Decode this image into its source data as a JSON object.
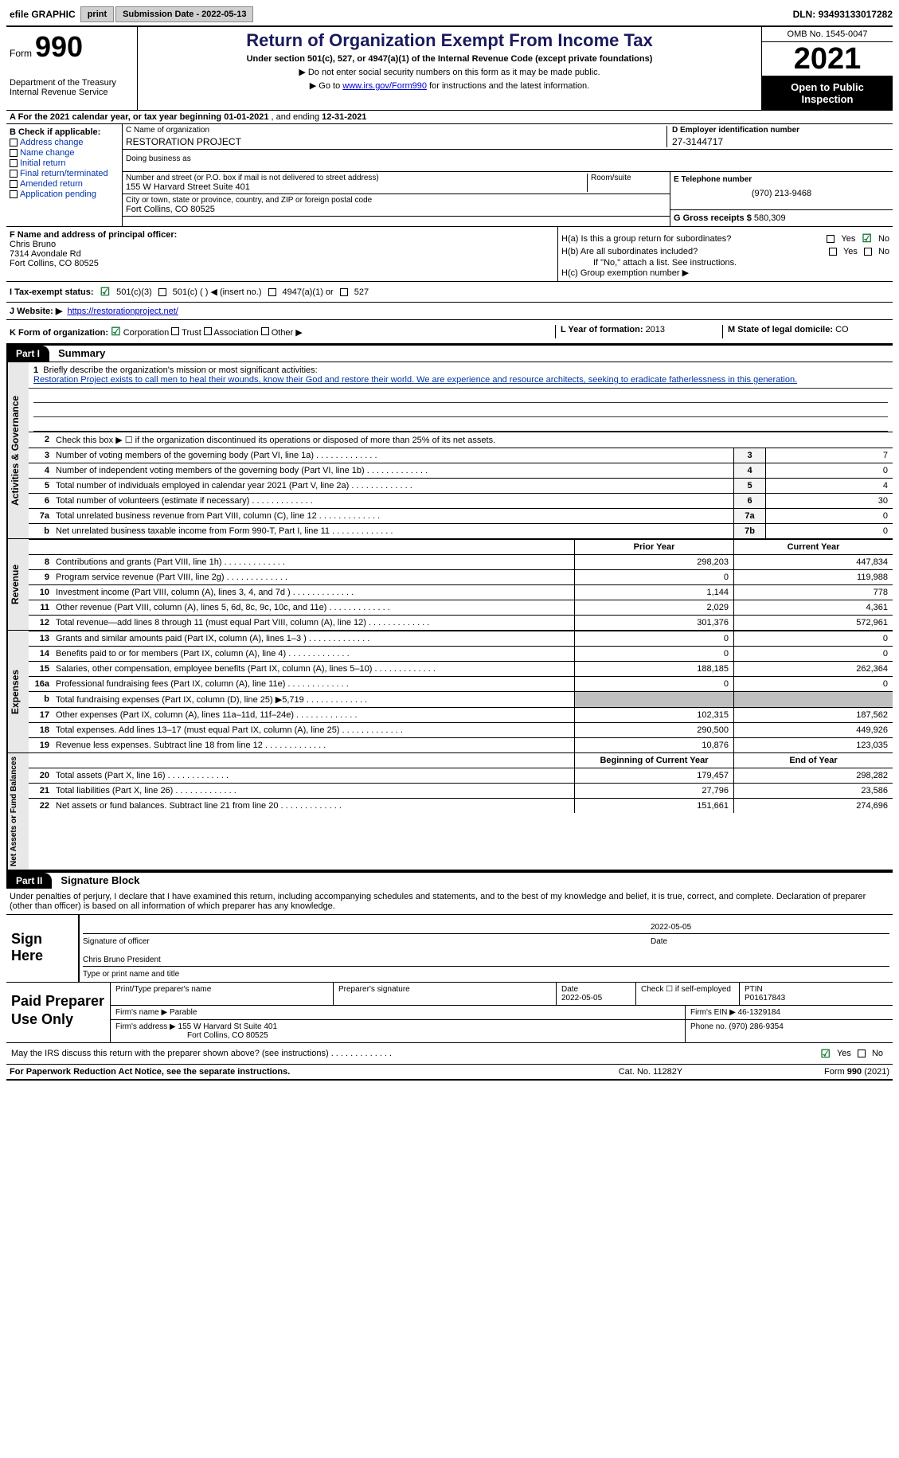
{
  "topbar": {
    "efile": "efile GRAPHIC",
    "print": "print",
    "subdate_label": "Submission Date - ",
    "subdate": "2022-05-13",
    "dln_label": "DLN: ",
    "dln": "93493133017282"
  },
  "header": {
    "form_word": "Form",
    "form_num": "990",
    "dept": "Department of the Treasury\nInternal Revenue Service",
    "title": "Return of Organization Exempt From Income Tax",
    "subtitle": "Under section 501(c), 527, or 4947(a)(1) of the Internal Revenue Code (except private foundations)",
    "instr1": "▶ Do not enter social security numbers on this form as it may be made public.",
    "instr2_pre": "▶ Go to ",
    "instr2_link": "www.irs.gov/Form990",
    "instr2_post": " for instructions and the latest information.",
    "omb": "OMB No. 1545-0047",
    "year": "2021",
    "open": "Open to Public Inspection"
  },
  "row_a": {
    "text_pre": "A For the 2021 calendar year, or tax year beginning ",
    "begin": "01-01-2021",
    "mid": "  , and ending ",
    "end": "12-31-2021"
  },
  "b": {
    "label": "B Check if applicable:",
    "items": [
      "Address change",
      "Name change",
      "Initial return",
      "Final return/terminated",
      "Amended return",
      "Application pending"
    ]
  },
  "c": {
    "label": "C Name of organization",
    "name": "RESTORATION PROJECT",
    "dba_label": "Doing business as",
    "street_label": "Number and street (or P.O. box if mail is not delivered to street address)",
    "street": "155 W Harvard Street Suite 401",
    "room_label": "Room/suite",
    "city_label": "City or town, state or province, country, and ZIP or foreign postal code",
    "city": "Fort Collins, CO  80525"
  },
  "d": {
    "label": "D Employer identification number",
    "value": "27-3144717"
  },
  "e": {
    "label": "E Telephone number",
    "value": "(970) 213-9468"
  },
  "g": {
    "label": "G Gross receipts $ ",
    "value": "580,309"
  },
  "f": {
    "label": "F  Name and address of principal officer:",
    "name": "Chris Bruno",
    "addr1": "7314 Avondale Rd",
    "addr2": "Fort Collins, CO  80525"
  },
  "h": {
    "a_label": "H(a)  Is this a group return for subordinates?",
    "b_label": "H(b)  Are all subordinates included?",
    "b_note": "If \"No,\" attach a list. See instructions.",
    "c_label": "H(c)  Group exemption number ▶",
    "yes": "Yes",
    "no": "No"
  },
  "i": {
    "label": "I  Tax-exempt status:",
    "opt1": "501(c)(3)",
    "opt2": "501(c) (  ) ◀ (insert no.)",
    "opt3": "4947(a)(1) or",
    "opt4": "527"
  },
  "j": {
    "label": "J  Website: ▶",
    "url": "https://restorationproject.net/"
  },
  "k": {
    "label": "K Form of organization:",
    "corp": "Corporation",
    "trust": "Trust",
    "assoc": "Association",
    "other": "Other ▶"
  },
  "l": {
    "label": "L Year of formation: ",
    "value": "2013"
  },
  "m": {
    "label": "M State of legal domicile: ",
    "value": "CO"
  },
  "part1": {
    "hdr": "Part I",
    "title": "Summary"
  },
  "line1": {
    "num": "1",
    "label": "Briefly describe the organization's mission or most significant activities:",
    "text": "Restoration Project exists to call men to heal their wounds, know their God and restore their world. We are experience and resource architects, seeking to eradicate fatherlessness in this generation."
  },
  "line2": {
    "num": "2",
    "text": "Check this box ▶ ☐  if the organization discontinued its operations or disposed of more than 25% of its net assets."
  },
  "lines_gov": [
    {
      "n": "3",
      "d": "Number of voting members of the governing body (Part VI, line 1a)",
      "bn": "3",
      "v": "7"
    },
    {
      "n": "4",
      "d": "Number of independent voting members of the governing body (Part VI, line 1b)",
      "bn": "4",
      "v": "0"
    },
    {
      "n": "5",
      "d": "Total number of individuals employed in calendar year 2021 (Part V, line 2a)",
      "bn": "5",
      "v": "4"
    },
    {
      "n": "6",
      "d": "Total number of volunteers (estimate if necessary)",
      "bn": "6",
      "v": "30"
    },
    {
      "n": "7a",
      "d": "Total unrelated business revenue from Part VIII, column (C), line 12",
      "bn": "7a",
      "v": "0"
    },
    {
      "n": "b",
      "d": "Net unrelated business taxable income from Form 990-T, Part I, line 11",
      "bn": "7b",
      "v": "0"
    }
  ],
  "rev_hdr": {
    "c1": "Prior Year",
    "c2": "Current Year"
  },
  "lines_rev": [
    {
      "n": "8",
      "d": "Contributions and grants (Part VIII, line 1h)",
      "c1": "298,203",
      "c2": "447,834"
    },
    {
      "n": "9",
      "d": "Program service revenue (Part VIII, line 2g)",
      "c1": "0",
      "c2": "119,988"
    },
    {
      "n": "10",
      "d": "Investment income (Part VIII, column (A), lines 3, 4, and 7d )",
      "c1": "1,144",
      "c2": "778"
    },
    {
      "n": "11",
      "d": "Other revenue (Part VIII, column (A), lines 5, 6d, 8c, 9c, 10c, and 11e)",
      "c1": "2,029",
      "c2": "4,361"
    },
    {
      "n": "12",
      "d": "Total revenue—add lines 8 through 11 (must equal Part VIII, column (A), line 12)",
      "c1": "301,376",
      "c2": "572,961"
    }
  ],
  "lines_exp": [
    {
      "n": "13",
      "d": "Grants and similar amounts paid (Part IX, column (A), lines 1–3 )",
      "c1": "0",
      "c2": "0"
    },
    {
      "n": "14",
      "d": "Benefits paid to or for members (Part IX, column (A), line 4)",
      "c1": "0",
      "c2": "0"
    },
    {
      "n": "15",
      "d": "Salaries, other compensation, employee benefits (Part IX, column (A), lines 5–10)",
      "c1": "188,185",
      "c2": "262,364"
    },
    {
      "n": "16a",
      "d": "Professional fundraising fees (Part IX, column (A), line 11e)",
      "c1": "0",
      "c2": "0"
    },
    {
      "n": "b",
      "d": "Total fundraising expenses (Part IX, column (D), line 25) ▶5,719",
      "c1": "",
      "c2": "",
      "gray": true
    },
    {
      "n": "17",
      "d": "Other expenses (Part IX, column (A), lines 11a–11d, 11f–24e)",
      "c1": "102,315",
      "c2": "187,562"
    },
    {
      "n": "18",
      "d": "Total expenses. Add lines 13–17 (must equal Part IX, column (A), line 25)",
      "c1": "290,500",
      "c2": "449,926"
    },
    {
      "n": "19",
      "d": "Revenue less expenses. Subtract line 18 from line 12",
      "c1": "10,876",
      "c2": "123,035"
    }
  ],
  "na_hdr": {
    "c1": "Beginning of Current Year",
    "c2": "End of Year"
  },
  "lines_na": [
    {
      "n": "20",
      "d": "Total assets (Part X, line 16)",
      "c1": "179,457",
      "c2": "298,282"
    },
    {
      "n": "21",
      "d": "Total liabilities (Part X, line 26)",
      "c1": "27,796",
      "c2": "23,586"
    },
    {
      "n": "22",
      "d": "Net assets or fund balances. Subtract line 21 from line 20",
      "c1": "151,661",
      "c2": "274,696"
    }
  ],
  "vtabs": {
    "gov": "Activities & Governance",
    "rev": "Revenue",
    "exp": "Expenses",
    "na": "Net Assets or Fund Balances"
  },
  "part2": {
    "hdr": "Part II",
    "title": "Signature Block"
  },
  "penalty": "Under penalties of perjury, I declare that I have examined this return, including accompanying schedules and statements, and to the best of my knowledge and belief, it is true, correct, and complete. Declaration of preparer (other than officer) is based on all information of which preparer has any knowledge.",
  "sign": {
    "label": "Sign Here",
    "sig_label": "Signature of officer",
    "date": "2022-05-05",
    "date_label": "Date",
    "name": "Chris Bruno  President",
    "name_label": "Type or print name and title"
  },
  "prep": {
    "label": "Paid Preparer Use Only",
    "print_label": "Print/Type preparer's name",
    "sig_label": "Preparer's signature",
    "date_label": "Date",
    "date": "2022-05-05",
    "check_label": "Check ☐ if self-employed",
    "ptin_label": "PTIN",
    "ptin": "P01617843",
    "firm_label": "Firm's name   ▶ ",
    "firm": "Parable",
    "ein_label": "Firm's EIN ▶ ",
    "ein": "46-1329184",
    "addr_label": "Firm's address ▶ ",
    "addr1": "155 W Harvard St Suite 401",
    "addr2": "Fort Collins, CO  80525",
    "phone_label": "Phone no. ",
    "phone": "(970) 286-9354"
  },
  "discuss": {
    "text": "May the IRS discuss this return with the preparer shown above? (see instructions)",
    "yes": "Yes",
    "no": "No"
  },
  "footer": {
    "left": "For Paperwork Reduction Act Notice, see the separate instructions.",
    "mid": "Cat. No. 11282Y",
    "right": "Form 990 (2021)"
  }
}
